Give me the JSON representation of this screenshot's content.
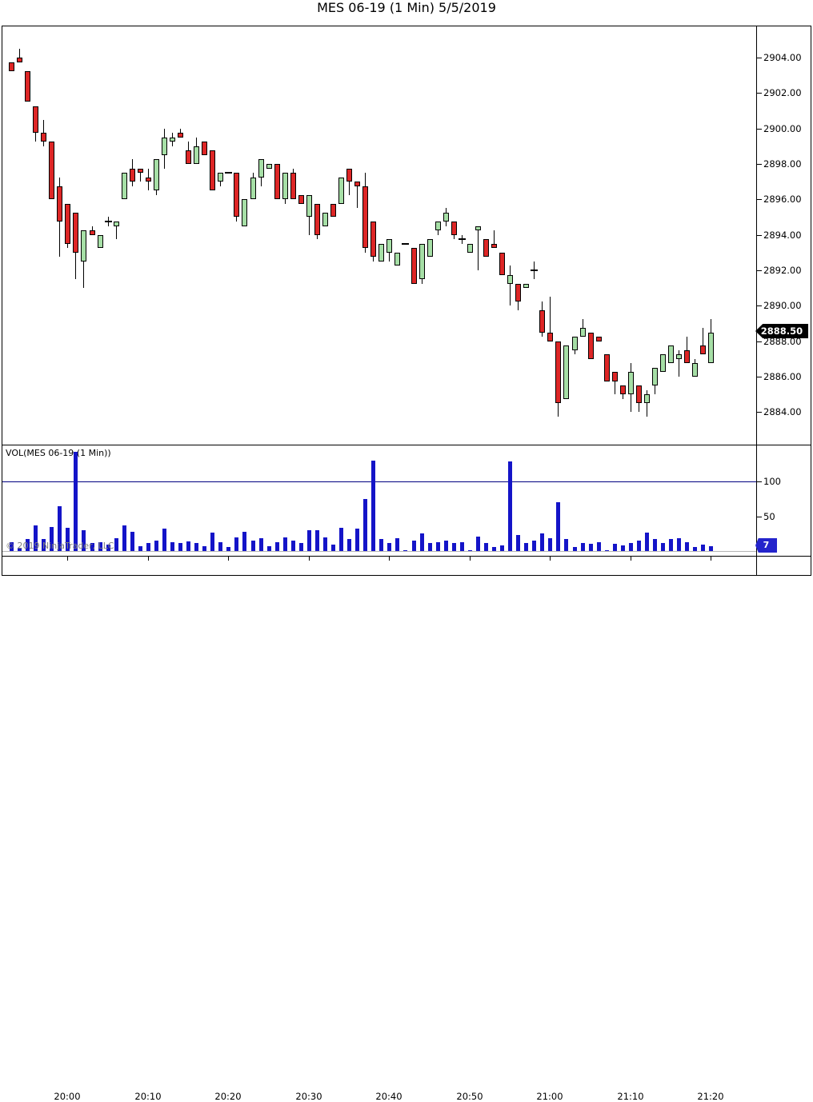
{
  "title": "MES 06-19 (1 Min)  5/5/2019",
  "price_axis": {
    "tick_labels": [
      "2904.00",
      "2902.00",
      "2900.00",
      "2898.00",
      "2896.00",
      "2894.00",
      "2892.00",
      "2890.00",
      "2888.00",
      "2886.00",
      "2884.00"
    ],
    "last_price_badge": "2888.50"
  },
  "volume_axis": {
    "tick_labels": [
      "100",
      "50"
    ],
    "tick_values": [
      100,
      50
    ],
    "last_volume_badge": "7"
  },
  "time_axis": {
    "labels": [
      "20:00",
      "20:10",
      "20:20",
      "20:30",
      "20:40",
      "20:50",
      "21:00",
      "21:10",
      "21:20"
    ]
  },
  "volume_panel": {
    "indicator_label": "VOL(MES 06-19 (1 Min))",
    "copyright": "© 2019 NinjaTrader, LLC",
    "threshold_line_value": 100
  },
  "colors": {
    "up_fill": "#a6dfa6",
    "down_fill": "#dd2626",
    "candle_outline": "#000000",
    "volume_bar": "#1414c8",
    "threshold_line": "#000080",
    "price_badge_bg": "#000000",
    "volume_badge_bg": "#2424cc",
    "badge_text": "#ffffff",
    "copyright_text": "#808080"
  },
  "chart_data": {
    "type": "candlestick",
    "instrument": "MES 06-19",
    "interval": "1 Min",
    "date": "5/5/2019",
    "title": "MES 06-19 (1 Min)  5/5/2019",
    "price_ylim": [
      2883.0,
      2905.8
    ],
    "volume_ylim": [
      0,
      160
    ],
    "legend_position": "none",
    "grid": false,
    "columns": [
      "time",
      "open",
      "high",
      "low",
      "close",
      "volume"
    ],
    "rows": [
      [
        "19:53",
        2903.75,
        2903.75,
        2903.25,
        2903.25,
        13
      ],
      [
        "19:54",
        2904.0,
        2904.5,
        2903.75,
        2903.75,
        5
      ],
      [
        "19:55",
        2903.25,
        2903.25,
        2901.5,
        2901.5,
        17
      ],
      [
        "19:56",
        2901.25,
        2901.25,
        2899.25,
        2899.75,
        37
      ],
      [
        "19:57",
        2899.75,
        2900.5,
        2899.0,
        2899.25,
        17
      ],
      [
        "19:58",
        2899.25,
        2899.25,
        2896.0,
        2896.0,
        35
      ],
      [
        "19:59",
        2896.75,
        2897.25,
        2892.75,
        2894.75,
        65
      ],
      [
        "20:00",
        2895.75,
        2895.75,
        2893.25,
        2893.5,
        34
      ],
      [
        "20:01",
        2895.25,
        2895.25,
        2891.5,
        2893.0,
        143
      ],
      [
        "20:02",
        2892.5,
        2894.25,
        2891.0,
        2894.25,
        30
      ],
      [
        "20:03",
        2894.25,
        2894.5,
        2894.0,
        2894.0,
        11
      ],
      [
        "20:04",
        2893.25,
        2894.0,
        2893.25,
        2894.0,
        13
      ],
      [
        "20:05",
        2894.75,
        2895.0,
        2894.5,
        2894.75,
        9
      ],
      [
        "20:06",
        2894.5,
        2894.75,
        2893.75,
        2894.75,
        19
      ],
      [
        "20:07",
        2896.0,
        2897.5,
        2896.0,
        2897.5,
        37
      ],
      [
        "20:08",
        2897.75,
        2898.25,
        2896.75,
        2897.0,
        28
      ],
      [
        "20:09",
        2897.75,
        2897.75,
        2897.0,
        2897.5,
        7
      ],
      [
        "20:10",
        2897.25,
        2897.75,
        2896.5,
        2897.0,
        11
      ],
      [
        "20:11",
        2896.5,
        2898.25,
        2896.25,
        2898.25,
        15
      ],
      [
        "20:12",
        2898.5,
        2900.0,
        2897.75,
        2899.5,
        32
      ],
      [
        "20:13",
        2899.25,
        2899.75,
        2899.0,
        2899.5,
        13
      ],
      [
        "20:14",
        2899.75,
        2900.0,
        2899.5,
        2899.5,
        11
      ],
      [
        "20:15",
        2898.75,
        2899.25,
        2898.0,
        2898.0,
        14
      ],
      [
        "20:16",
        2898.0,
        2899.5,
        2898.0,
        2899.0,
        11
      ],
      [
        "20:17",
        2899.25,
        2899.25,
        2898.5,
        2898.5,
        7
      ],
      [
        "20:18",
        2898.75,
        2898.75,
        2896.5,
        2896.5,
        26
      ],
      [
        "20:19",
        2897.0,
        2897.5,
        2896.75,
        2897.5,
        13
      ],
      [
        "20:20",
        2897.5,
        2897.5,
        2897.5,
        2897.5,
        6
      ],
      [
        "20:21",
        2897.5,
        2897.5,
        2894.75,
        2895.0,
        20
      ],
      [
        "20:22",
        2894.5,
        2896.0,
        2894.5,
        2896.0,
        28
      ],
      [
        "20:23",
        2896.0,
        2897.5,
        2896.0,
        2897.25,
        15
      ],
      [
        "20:24",
        2897.25,
        2898.25,
        2896.75,
        2898.25,
        19
      ],
      [
        "20:25",
        2897.75,
        2898.0,
        2897.75,
        2898.0,
        7
      ],
      [
        "20:26",
        2898.0,
        2898.0,
        2896.0,
        2896.0,
        13
      ],
      [
        "20:27",
        2896.0,
        2897.5,
        2895.75,
        2897.5,
        20
      ],
      [
        "20:28",
        2897.5,
        2897.75,
        2896.0,
        2896.0,
        15
      ],
      [
        "20:29",
        2896.25,
        2896.25,
        2895.75,
        2895.75,
        11
      ],
      [
        "20:30",
        2895.0,
        2896.25,
        2894.0,
        2896.25,
        30
      ],
      [
        "20:31",
        2895.75,
        2895.75,
        2893.75,
        2894.0,
        30
      ],
      [
        "20:32",
        2894.5,
        2895.25,
        2894.5,
        2895.25,
        20
      ],
      [
        "20:33",
        2895.75,
        2895.75,
        2895.0,
        2895.0,
        9
      ],
      [
        "20:34",
        2895.75,
        2897.25,
        2895.75,
        2897.25,
        34
      ],
      [
        "20:35",
        2897.75,
        2897.75,
        2896.25,
        2897.0,
        17
      ],
      [
        "20:36",
        2897.0,
        2897.0,
        2895.5,
        2896.75,
        32
      ],
      [
        "20:37",
        2896.75,
        2897.5,
        2893.0,
        2893.25,
        75
      ],
      [
        "20:38",
        2894.75,
        2894.75,
        2892.5,
        2892.75,
        130
      ],
      [
        "20:39",
        2892.5,
        2893.5,
        2892.5,
        2893.5,
        17
      ],
      [
        "20:40",
        2893.0,
        2893.75,
        2892.5,
        2893.75,
        11
      ],
      [
        "20:41",
        2892.25,
        2893.0,
        2892.25,
        2893.0,
        19
      ],
      [
        "20:42",
        2893.5,
        2893.5,
        2893.5,
        2893.5,
        1
      ],
      [
        "20:43",
        2893.25,
        2893.25,
        2891.25,
        2891.25,
        15
      ],
      [
        "20:44",
        2891.5,
        2893.5,
        2891.25,
        2893.5,
        25
      ],
      [
        "20:45",
        2892.75,
        2893.75,
        2892.75,
        2893.75,
        11
      ],
      [
        "20:46",
        2894.25,
        2894.75,
        2894.0,
        2894.75,
        13
      ],
      [
        "20:47",
        2894.75,
        2895.5,
        2894.5,
        2895.25,
        15
      ],
      [
        "20:48",
        2894.75,
        2894.75,
        2893.75,
        2894.0,
        11
      ],
      [
        "20:49",
        2893.75,
        2894.0,
        2893.5,
        2893.75,
        13
      ],
      [
        "20:50",
        2893.0,
        2893.5,
        2893.0,
        2893.5,
        1
      ],
      [
        "20:51",
        2894.25,
        2894.5,
        2892.0,
        2894.5,
        21
      ],
      [
        "20:52",
        2893.75,
        2893.75,
        2892.75,
        2892.75,
        11
      ],
      [
        "20:53",
        2893.5,
        2894.25,
        2893.25,
        2893.25,
        6
      ],
      [
        "20:54",
        2893.0,
        2893.0,
        2891.75,
        2891.75,
        8
      ],
      [
        "20:55",
        2891.25,
        2892.25,
        2890.0,
        2891.75,
        129
      ],
      [
        "20:56",
        2891.25,
        2891.25,
        2889.75,
        2890.25,
        23
      ],
      [
        "20:57",
        2891.0,
        2891.25,
        2891.0,
        2891.25,
        11
      ],
      [
        "20:58",
        2892.0,
        2892.5,
        2891.5,
        2892.0,
        15
      ],
      [
        "20:59",
        2889.75,
        2890.25,
        2888.25,
        2888.5,
        25
      ],
      [
        "21:00",
        2888.5,
        2890.5,
        2888.0,
        2888.0,
        19
      ],
      [
        "21:01",
        2888.0,
        2888.0,
        2883.75,
        2884.5,
        70
      ],
      [
        "21:02",
        2884.75,
        2887.75,
        2884.75,
        2887.75,
        17
      ],
      [
        "21:03",
        2887.5,
        2888.25,
        2887.25,
        2888.25,
        6
      ],
      [
        "21:04",
        2888.25,
        2889.25,
        2888.25,
        2888.75,
        11
      ],
      [
        "21:05",
        2888.5,
        2888.5,
        2887.0,
        2887.0,
        10
      ],
      [
        "21:06",
        2888.25,
        2888.25,
        2888.0,
        2888.0,
        13
      ],
      [
        "21:07",
        2887.25,
        2887.25,
        2885.75,
        2885.75,
        1
      ],
      [
        "21:08",
        2886.25,
        2886.25,
        2885.0,
        2885.75,
        10
      ],
      [
        "21:09",
        2885.5,
        2885.5,
        2884.75,
        2885.0,
        8
      ],
      [
        "21:10",
        2885.0,
        2886.75,
        2884.0,
        2886.25,
        11
      ],
      [
        "21:11",
        2885.5,
        2885.5,
        2884.0,
        2884.5,
        15
      ],
      [
        "21:12",
        2884.5,
        2885.25,
        2883.75,
        2885.0,
        27
      ],
      [
        "21:13",
        2885.5,
        2886.5,
        2885.0,
        2886.5,
        17
      ],
      [
        "21:14",
        2886.25,
        2887.25,
        2886.25,
        2887.25,
        11
      ],
      [
        "21:15",
        2886.75,
        2887.75,
        2886.75,
        2887.75,
        17
      ],
      [
        "21:16",
        2887.0,
        2887.5,
        2886.0,
        2887.25,
        19
      ],
      [
        "21:17",
        2887.5,
        2888.25,
        2886.75,
        2886.75,
        13
      ],
      [
        "21:18",
        2886.0,
        2887.0,
        2886.0,
        2886.75,
        6
      ],
      [
        "21:19",
        2887.75,
        2888.75,
        2887.25,
        2887.25,
        9
      ],
      [
        "21:20",
        2886.75,
        2889.25,
        2886.75,
        2888.5,
        7
      ]
    ]
  }
}
